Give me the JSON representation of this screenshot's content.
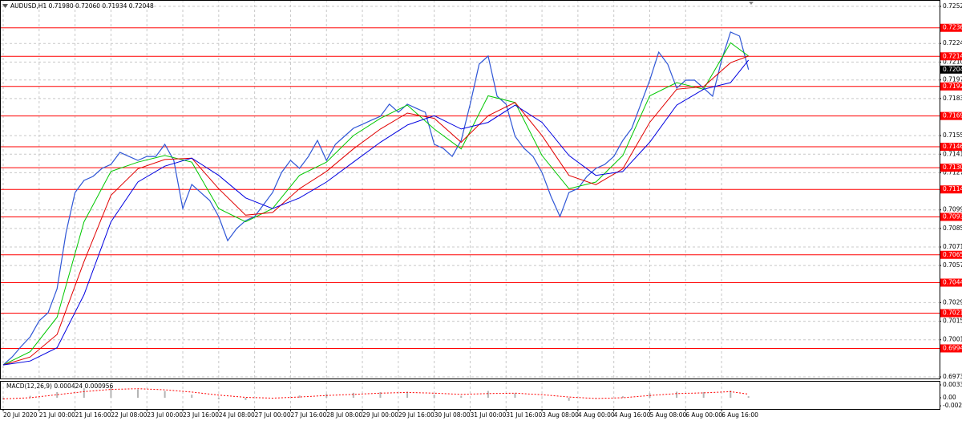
{
  "chart_data": [
    {
      "type": "line",
      "title": "AUDUSD,H1  0.71980 0.72060 0.71934 0.72048",
      "xlim": [
        -1.43,
        417.1
      ],
      "ylim": [
        0.69718,
        0.72573
      ],
      "xticks": [
        {
          "value": 0,
          "label": "20 Jul 2020"
        },
        {
          "value": 16,
          "label": "21 Jul 00:00"
        },
        {
          "value": 32,
          "label": "21 Jul 16:00"
        },
        {
          "value": 48,
          "label": "22 Jul 08:00"
        },
        {
          "value": 64,
          "label": "23 Jul 00:00"
        },
        {
          "value": 80,
          "label": "23 Jul 16:00"
        },
        {
          "value": 96,
          "label": "24 Jul 08:00"
        },
        {
          "value": 112,
          "label": "27 Jul 00:00"
        },
        {
          "value": 128,
          "label": "27 Jul 16:00"
        },
        {
          "value": 144,
          "label": "28 Jul 08:00"
        },
        {
          "value": 160,
          "label": "29 Jul 00:00"
        },
        {
          "value": 176,
          "label": "29 Jul 16:00"
        },
        {
          "value": 192,
          "label": "30 Jul 08:00"
        },
        {
          "value": 208,
          "label": "31 Jul 00:00"
        },
        {
          "value": 224,
          "label": "31 Jul 16:00"
        },
        {
          "value": 240,
          "label": "3 Aug 08:00"
        },
        {
          "value": 256,
          "label": "4 Aug 00:00"
        },
        {
          "value": 272,
          "label": "4 Aug 16:00"
        },
        {
          "value": 288,
          "label": "5 Aug 08:00"
        },
        {
          "value": 304,
          "label": "6 Aug 00:00"
        },
        {
          "value": 320,
          "label": "6 Aug 16:00"
        }
      ],
      "yticks": [
        0.72525,
        0.72245,
        0.72105,
        {
          "value": 0.7197,
          "label": "0.71970"
        },
        {
          "value": 0.7183,
          "label": "0.71830"
        },
        {
          "value": 0.7155,
          "label": "0.71550"
        },
        {
          "value": 0.7141,
          "label": "0.71410"
        },
        {
          "value": 0.7127,
          "label": "0.71270"
        },
        {
          "value": 0.7099,
          "label": "0.70990"
        },
        {
          "value": 0.7085,
          "label": "0.70850"
        },
        {
          "value": 0.7071,
          "label": "0.70710"
        },
        {
          "value": 0.7057,
          "label": "0.70570"
        },
        {
          "value": 0.7029,
          "label": "0.70290"
        },
        {
          "value": 0.7015,
          "label": "0.70150"
        },
        {
          "value": 0.7001,
          "label": "0.70010"
        },
        {
          "value": 0.6973,
          "label": "0.69730"
        }
      ],
      "grid": true,
      "levels": [
        0.72363,
        0.72148,
        0.71921,
        0.71698,
        0.71466,
        0.71308,
        0.71144,
        0.70937,
        0.70651,
        0.70441,
        0.70211,
        0.69945
      ],
      "level_color": "#ff0000",
      "current": 0.72048,
      "series": [
        {
          "color": "#2f56d6",
          "width": 1.2,
          "x": [
            0,
            4,
            8,
            12,
            16,
            20,
            24,
            28,
            32,
            36,
            40,
            44,
            48,
            52,
            56,
            60,
            64,
            68,
            72,
            76,
            80,
            84,
            88,
            92,
            96,
            100,
            104,
            108,
            112,
            116,
            120,
            124,
            128,
            132,
            136,
            140,
            144,
            148,
            152,
            156,
            160,
            164,
            168,
            172,
            176,
            180,
            184,
            188,
            192,
            196,
            200,
            204,
            208,
            212,
            216,
            220,
            224,
            228,
            232,
            236,
            240,
            244,
            248,
            252,
            256,
            260,
            264,
            268,
            272,
            276,
            280,
            284,
            288,
            292,
            296,
            300,
            304,
            308,
            312,
            316,
            320,
            324,
            328,
            332
          ],
          "values": [
            0.6982,
            0.69881,
            0.6996,
            0.70032,
            0.70153,
            0.70214,
            0.70395,
            0.70819,
            0.71121,
            0.71212,
            0.71242,
            0.71303,
            0.71333,
            0.71424,
            0.71393,
            0.71363,
            0.71393,
            0.71393,
            0.71484,
            0.71363,
            0.71,
            0.71182,
            0.71121,
            0.71061,
            0.7094,
            0.70758,
            0.70849,
            0.70909,
            0.7094,
            0.7103,
            0.71121,
            0.71272,
            0.71363,
            0.71303,
            0.71393,
            0.71514,
            0.71363,
            0.71484,
            0.71545,
            0.71605,
            0.71635,
            0.71666,
            0.71696,
            0.71787,
            0.71726,
            0.71787,
            0.71756,
            0.71726,
            0.71484,
            0.71454,
            0.71393,
            0.71514,
            0.71787,
            0.72089,
            0.7215,
            0.71847,
            0.71787,
            0.71545,
            0.71454,
            0.71393,
            0.71272,
            0.71091,
            0.7094,
            0.71121,
            0.71151,
            0.71242,
            0.71303,
            0.71333,
            0.71393,
            0.71514,
            0.71605,
            0.71787,
            0.71968,
            0.7218,
            0.72089,
            0.71908,
            0.71968,
            0.71968,
            0.71908,
            0.71847,
            0.72119,
            0.72331,
            0.72301,
            0.72048
          ]
        },
        {
          "color": "#00c800",
          "width": 1,
          "x": [
            0,
            12,
            24,
            36,
            48,
            60,
            72,
            84,
            96,
            108,
            120,
            132,
            144,
            156,
            168,
            180,
            192,
            204,
            216,
            228,
            240,
            252,
            264,
            276,
            288,
            300,
            312,
            324,
            332
          ],
          "values": [
            0.6982,
            0.6992,
            0.7018,
            0.709,
            0.7128,
            0.7135,
            0.714,
            0.7135,
            0.71,
            0.709,
            0.71,
            0.7125,
            0.7135,
            0.7155,
            0.7168,
            0.7178,
            0.716,
            0.7145,
            0.7185,
            0.718,
            0.714,
            0.7115,
            0.712,
            0.714,
            0.7185,
            0.7195,
            0.719,
            0.7225,
            0.7215
          ]
        },
        {
          "color": "#e00000",
          "width": 1,
          "x": [
            0,
            12,
            24,
            36,
            48,
            60,
            72,
            84,
            96,
            108,
            120,
            132,
            144,
            156,
            168,
            180,
            192,
            204,
            216,
            228,
            240,
            252,
            264,
            276,
            288,
            300,
            312,
            324,
            332
          ],
          "values": [
            0.6982,
            0.6988,
            0.7005,
            0.706,
            0.711,
            0.713,
            0.7137,
            0.7138,
            0.7115,
            0.7095,
            0.7097,
            0.7115,
            0.7128,
            0.7145,
            0.716,
            0.7172,
            0.7168,
            0.715,
            0.717,
            0.718,
            0.7155,
            0.7125,
            0.7118,
            0.713,
            0.7165,
            0.719,
            0.7192,
            0.721,
            0.7215
          ]
        },
        {
          "color": "#0000e0",
          "width": 1,
          "x": [
            0,
            12,
            24,
            36,
            48,
            60,
            72,
            84,
            96,
            108,
            120,
            132,
            144,
            156,
            168,
            180,
            192,
            204,
            216,
            228,
            240,
            252,
            264,
            276,
            288,
            300,
            312,
            324,
            332
          ],
          "values": [
            0.6982,
            0.6985,
            0.6995,
            0.7035,
            0.709,
            0.712,
            0.7132,
            0.7138,
            0.7125,
            0.7108,
            0.71,
            0.7108,
            0.712,
            0.7135,
            0.715,
            0.7163,
            0.717,
            0.716,
            0.7165,
            0.7178,
            0.7165,
            0.714,
            0.7125,
            0.7128,
            0.715,
            0.7178,
            0.719,
            0.7195,
            0.7212
          ]
        }
      ]
    },
    {
      "type": "macd",
      "title": "MACD(12,26,9) 0.000424 0.000956",
      "xlim": [
        -1.43,
        417.1
      ],
      "ylim": [
        -0.00297,
        0.00424
      ],
      "yticks": [
        0.003394,
        {
          "value": 0,
          "label": "0.00"
        },
        -0.00214
      ],
      "series": [
        {
          "style": "histogram",
          "color": "#b4b4b4",
          "x": [
            0,
            12,
            24,
            36,
            48,
            60,
            72,
            84,
            96,
            108,
            120,
            132,
            144,
            156,
            168,
            180,
            192,
            204,
            216,
            228,
            240,
            252,
            264,
            276,
            288,
            300,
            312,
            324,
            332
          ],
          "values": [
            -0.0005,
            0.0005,
            0.0015,
            0.0025,
            0.0027,
            0.0022,
            0.0018,
            0.0008,
            -0.0004,
            -0.0006,
            0,
            0.0006,
            0.001,
            0.0013,
            0.0015,
            0.0016,
            0.0008,
            0.0005,
            0.0018,
            0.0012,
            0,
            -0.0008,
            -0.0002,
            0.0004,
            0.0012,
            0.0016,
            0.0015,
            0.0019,
            0.0004
          ]
        },
        {
          "style": "dotted",
          "color": "#ff0000",
          "x": [
            0,
            12,
            24,
            36,
            48,
            60,
            72,
            84,
            96,
            108,
            120,
            132,
            144,
            156,
            168,
            180,
            192,
            204,
            216,
            228,
            240,
            252,
            264,
            276,
            288,
            300,
            312,
            324,
            332
          ],
          "values": [
            -0.0003,
            0,
            0.0008,
            0.0016,
            0.0022,
            0.0024,
            0.0021,
            0.0015,
            0.0007,
            0.0001,
            -0.0001,
            0.0002,
            0.0006,
            0.0009,
            0.0012,
            0.0014,
            0.0012,
            0.0009,
            0.0011,
            0.0012,
            0.0008,
            0.0002,
            -0.0002,
            0,
            0.0006,
            0.0011,
            0.0013,
            0.0016,
            0.00096
          ]
        }
      ]
    }
  ]
}
